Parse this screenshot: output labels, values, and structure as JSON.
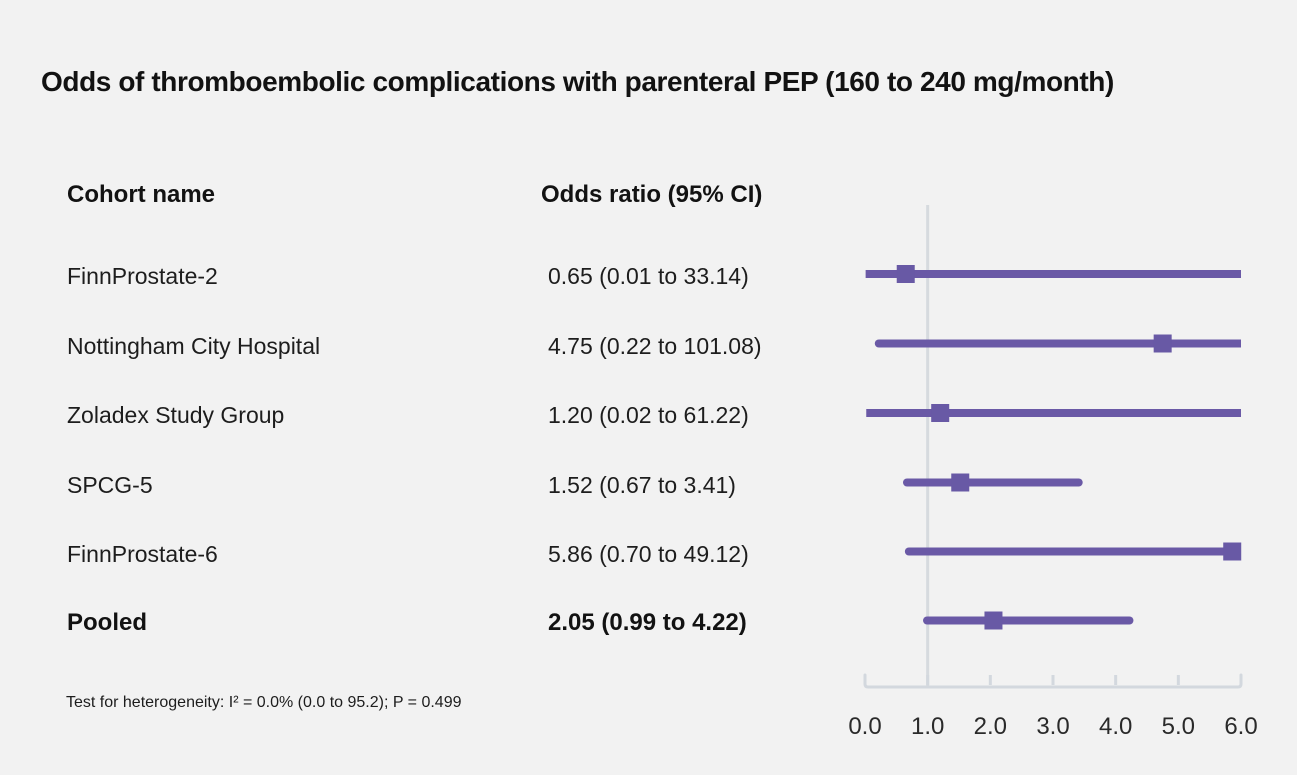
{
  "title": "Odds of thromboembolic complications with parenteral PEP (160 to 240 mg/month)",
  "table": {
    "cohort_header": "Cohort name",
    "odds_header": "Odds ratio (95% CI)"
  },
  "footnote": "Test for heterogeneity: I² = 0.0% (0.0 to 95.2); P = 0.499",
  "colors": {
    "background": "#f2f2f2",
    "text": "#1d1d1d",
    "ci_line": "#6a59a6",
    "marker": "#6859a5",
    "axis": "#d3d8de",
    "refline": "#d6dade"
  },
  "chart_data": {
    "type": "forest",
    "title": "Odds of thromboembolic complications with parenteral PEP (160 to 240 mg/month)",
    "x_axis": {
      "xlim": [
        0.0,
        6.0
      ],
      "tick_values": [
        0.0,
        1.0,
        2.0,
        3.0,
        4.0,
        5.0,
        6.0
      ],
      "tick_labels": [
        "0.0",
        "1.0",
        "2.0",
        "3.0",
        "4.0",
        "5.0",
        "6.0"
      ],
      "reference_line_x": 1.0
    },
    "rows": [
      {
        "label": "FinnProstate-2",
        "or_text": "0.65 (0.01 to 33.14)",
        "or": 0.65,
        "lo": 0.01,
        "hi": 33.14,
        "bold": false
      },
      {
        "label": "Nottingham City Hospital",
        "or_text": "4.75 (0.22 to 101.08)",
        "or": 4.75,
        "lo": 0.22,
        "hi": 101.08,
        "bold": false
      },
      {
        "label": "Zoladex Study Group",
        "or_text": "1.20 (0.02 to 61.22)",
        "or": 1.2,
        "lo": 0.02,
        "hi": 61.22,
        "bold": false
      },
      {
        "label": "SPCG-5",
        "or_text": "1.52 (0.67 to 3.41)",
        "or": 1.52,
        "lo": 0.67,
        "hi": 3.41,
        "bold": false
      },
      {
        "label": "FinnProstate-6",
        "or_text": "5.86 (0.70 to 49.12)",
        "or": 5.86,
        "lo": 0.7,
        "hi": 49.12,
        "bold": false
      },
      {
        "label": "Pooled",
        "or_text": "2.05 (0.99 to 4.22)",
        "or": 2.05,
        "lo": 0.99,
        "hi": 4.22,
        "bold": true
      }
    ]
  }
}
